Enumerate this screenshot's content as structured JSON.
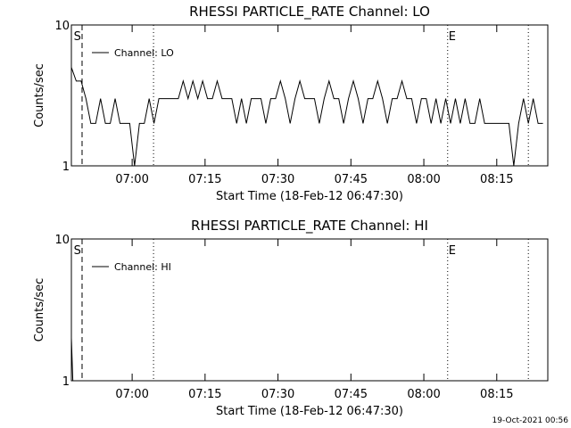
{
  "chart_data": [
    {
      "type": "line",
      "title": "RHESSI PARTICLE_RATE Channel: LO",
      "xlabel": "Start Time (18-Feb-12 06:47:30)",
      "ylabel": "Counts/sec",
      "x": [
        0,
        1,
        2,
        3,
        4,
        5,
        6,
        7,
        8,
        9,
        10,
        11,
        12,
        13,
        14,
        15,
        16,
        17,
        18,
        19,
        20,
        21,
        22,
        23,
        24,
        25,
        26,
        27,
        28,
        29,
        30,
        31,
        32,
        33,
        34,
        35,
        36,
        37,
        38,
        39,
        40,
        41,
        42,
        43,
        44,
        45,
        46,
        47,
        48,
        49,
        50,
        51,
        52,
        53,
        54,
        55,
        56,
        57,
        58,
        59,
        60,
        61,
        62,
        63,
        64,
        65,
        66,
        67,
        68,
        69,
        70,
        71,
        72,
        73,
        74,
        75,
        76,
        77,
        78,
        79,
        80,
        81,
        82,
        83,
        84,
        85,
        86,
        87,
        88,
        89,
        90,
        91,
        92,
        93,
        94,
        95,
        96,
        97
      ],
      "series": [
        {
          "name": "Channel: LO",
          "color": "#000000",
          "values": [
            5,
            4,
            4,
            3,
            2,
            2,
            3,
            2,
            2,
            3,
            2,
            2,
            2,
            1,
            2,
            2,
            3,
            2,
            3,
            3,
            3,
            3,
            3,
            4,
            3,
            4,
            3,
            4,
            3,
            3,
            4,
            3,
            3,
            3,
            2,
            3,
            2,
            3,
            3,
            3,
            2,
            3,
            3,
            4,
            3,
            2,
            3,
            4,
            3,
            3,
            3,
            2,
            3,
            4,
            3,
            3,
            2,
            3,
            4,
            3,
            2,
            3,
            3,
            4,
            3,
            2,
            3,
            3,
            4,
            3,
            3,
            2,
            3,
            3,
            2,
            3,
            2,
            3,
            2,
            3,
            2,
            3,
            2,
            2,
            3,
            2,
            2,
            2,
            2,
            2,
            2,
            1,
            2,
            3,
            2,
            3,
            2,
            2
          ]
        }
      ],
      "xlim": [
        0,
        98
      ],
      "ylim": [
        1,
        10
      ],
      "log_scale": true,
      "xticks": [
        {
          "value": 12.5,
          "label": "07:00"
        },
        {
          "value": 27.5,
          "label": "07:15"
        },
        {
          "value": 42.5,
          "label": "07:30"
        },
        {
          "value": 57.5,
          "label": "07:45"
        },
        {
          "value": 72.5,
          "label": "08:00"
        },
        {
          "value": 87.5,
          "label": "08:15"
        }
      ],
      "yticks": [
        1,
        10
      ],
      "vlines": [
        {
          "value": 2.2,
          "style": "dashed"
        },
        {
          "value": 16.9,
          "style": "dotted"
        },
        {
          "value": 77.4,
          "style": "dotted"
        },
        {
          "value": 94,
          "style": "dotted"
        }
      ],
      "annotations": [
        {
          "text": "S",
          "x": 0.3
        },
        {
          "text": "E",
          "x": 77.4
        }
      ]
    },
    {
      "type": "line",
      "title": "RHESSI PARTICLE_RATE Channel: HI",
      "xlabel": "Start Time (18-Feb-12 06:47:30)",
      "ylabel": "Counts/sec",
      "x": [
        0,
        0.3,
        0.6
      ],
      "series": [
        {
          "name": "Channel: HI",
          "color": "#000000",
          "values": [
            2,
            1,
            1
          ]
        }
      ],
      "xlim": [
        0,
        98
      ],
      "ylim": [
        1,
        10
      ],
      "log_scale": true,
      "xticks": [
        {
          "value": 12.5,
          "label": "07:00"
        },
        {
          "value": 27.5,
          "label": "07:15"
        },
        {
          "value": 42.5,
          "label": "07:30"
        },
        {
          "value": 57.5,
          "label": "07:45"
        },
        {
          "value": 72.5,
          "label": "08:00"
        },
        {
          "value": 87.5,
          "label": "08:15"
        }
      ],
      "yticks": [
        1,
        10
      ],
      "vlines": [
        {
          "value": 2.2,
          "style": "dashed"
        },
        {
          "value": 16.9,
          "style": "dotted"
        },
        {
          "value": 77.4,
          "style": "dotted"
        },
        {
          "value": 94,
          "style": "dotted"
        }
      ],
      "annotations": [
        {
          "text": "S",
          "x": 0.3
        },
        {
          "text": "E",
          "x": 77.4
        }
      ]
    }
  ],
  "footer": "19-Oct-2021 00:56"
}
